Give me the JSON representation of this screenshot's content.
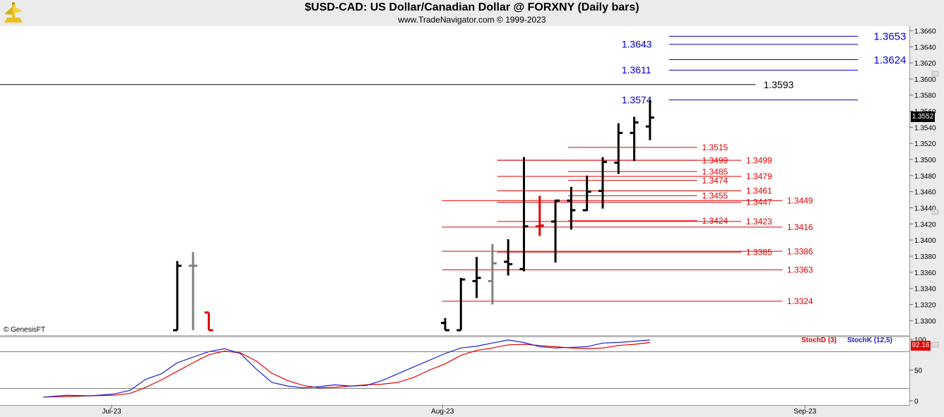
{
  "header": {
    "title": "$USD-CAD:  US Dollar/Canadian Dollar @ FORXNY  (Daily bars)",
    "subtitle": "www.TradeNavigator.com © 1999-2023"
  },
  "watermark": "© GenesisFT",
  "colors": {
    "background": "#ffffff",
    "frame": "#ebebeb",
    "bar_up": "#000000",
    "bar_neutral": "#808080",
    "bar_down": "#e00000",
    "level_red": "#e00000",
    "level_blue": "#0000cc",
    "level_black": "#000000",
    "stoch_d": "#e00000",
    "stoch_k": "#2020d0"
  },
  "chart_data": {
    "type": "ohlc",
    "title": "$USD-CAD:  US Dollar/Canadian Dollar @ FORXNY  (Daily bars)",
    "ylim": [
      1.3288,
      1.3663
    ],
    "y_ticks": [
      1.33,
      1.332,
      1.334,
      1.336,
      1.338,
      1.34,
      1.342,
      1.344,
      1.346,
      1.348,
      1.35,
      1.352,
      1.354,
      1.356,
      1.358,
      1.36,
      1.362,
      1.364,
      1.366
    ],
    "y_tick_labels": [
      "1.3300",
      "1.3320",
      "1.3340",
      "1.3360",
      "1.3380",
      "1.3400",
      "1.3420",
      "1.3440",
      "1.3460",
      "1.3480",
      "1.3500",
      "1.3520",
      "1.3540",
      "1.3560",
      "1.3580",
      "1.3600",
      "1.3620",
      "1.3640",
      "1.3660"
    ],
    "x_labels": [
      {
        "label": "Jul-23",
        "index": 0
      },
      {
        "label": "Aug-23",
        "index": 21
      },
      {
        "label": "Sep-23",
        "index": 44
      }
    ],
    "last_price": "1.3552",
    "bars": [
      {
        "i": 3,
        "open": 1.3288,
        "high": 1.3374,
        "low": 1.3288,
        "close": 1.3368,
        "color": "black"
      },
      {
        "i": 4,
        "open": 1.3368,
        "high": 1.3385,
        "low": 1.3288,
        "close": 1.3368,
        "color": "gray"
      },
      {
        "i": 5,
        "open": 1.331,
        "high": 1.331,
        "low": 1.3288,
        "close": 1.3288,
        "color": "red"
      },
      {
        "i": 20,
        "open": 1.3297,
        "high": 1.3303,
        "low": 1.3288,
        "close": 1.3288,
        "color": "black"
      },
      {
        "i": 21,
        "open": 1.3288,
        "high": 1.3353,
        "low": 1.3288,
        "close": 1.3351,
        "color": "black"
      },
      {
        "i": 22,
        "open": 1.3349,
        "high": 1.3379,
        "low": 1.3328,
        "close": 1.3353,
        "color": "black"
      },
      {
        "i": 23,
        "open": 1.3349,
        "high": 1.3395,
        "low": 1.332,
        "close": 1.3371,
        "color": "gray"
      },
      {
        "i": 24,
        "open": 1.3373,
        "high": 1.3401,
        "low": 1.3356,
        "close": 1.337,
        "color": "black"
      },
      {
        "i": 25,
        "open": 1.3364,
        "high": 1.3503,
        "low": 1.3361,
        "close": 1.3417,
        "color": "black"
      },
      {
        "i": 26,
        "open": 1.3417,
        "high": 1.3455,
        "low": 1.3405,
        "close": 1.3418,
        "color": "red"
      },
      {
        "i": 27,
        "open": 1.3423,
        "high": 1.345,
        "low": 1.3372,
        "close": 1.3449,
        "color": "black"
      },
      {
        "i": 28,
        "open": 1.3449,
        "high": 1.3466,
        "low": 1.3413,
        "close": 1.3437,
        "color": "black"
      },
      {
        "i": 29,
        "open": 1.3437,
        "high": 1.348,
        "low": 1.3436,
        "close": 1.346,
        "color": "black"
      },
      {
        "i": 30,
        "open": 1.3461,
        "high": 1.3503,
        "low": 1.3439,
        "close": 1.3497,
        "color": "black"
      },
      {
        "i": 31,
        "open": 1.3496,
        "high": 1.3545,
        "low": 1.3482,
        "close": 1.3533,
        "color": "black"
      },
      {
        "i": 32,
        "open": 1.3533,
        "high": 1.3553,
        "low": 1.3498,
        "close": 1.3546,
        "color": "black"
      },
      {
        "i": 33,
        "open": 1.3541,
        "high": 1.3574,
        "low": 1.3524,
        "close": 1.3552,
        "color": "black"
      }
    ],
    "levels": [
      {
        "value": 1.3653,
        "label": "1.3653",
        "color": "blue",
        "from": 34.2,
        "to": 46.2,
        "label_at": 47.2,
        "large": true
      },
      {
        "value": 1.3643,
        "label": "1.3643",
        "color": "blue",
        "from": 34.2,
        "to": 46.2,
        "label_at": 31.2,
        "large": false
      },
      {
        "value": 1.3624,
        "label": "1.3624",
        "color": "blue",
        "from": 34.2,
        "to": 46.2,
        "label_at": 47.2,
        "large": true
      },
      {
        "value": 1.3611,
        "label": "1.3611",
        "color": "blue",
        "from": 34.2,
        "to": 46.2,
        "label_at": 31.2,
        "large": false
      },
      {
        "value": 1.3593,
        "label": "1.3593",
        "color": "black",
        "from": -99,
        "to": 39.7,
        "label_at": 40.2,
        "large": false
      },
      {
        "value": 1.3574,
        "label": "1.3574",
        "color": "blue",
        "from": 34.2,
        "to": 46.2,
        "label_at": 31.2,
        "large": false
      },
      {
        "value": 1.3515,
        "label": "1.3515",
        "color": "red",
        "from": 27.8,
        "to": 36.0,
        "label_at": 36.3,
        "large": false
      },
      {
        "value": 1.3499,
        "label": "1.3499",
        "color": "red",
        "from": 23.3,
        "to": 36.0,
        "label_at": 36.3,
        "large": false
      },
      {
        "value": 1.3499,
        "label": "1.3499",
        "color": "red",
        "from": 23.3,
        "to": 38.8,
        "label_at": 39.1,
        "large": false
      },
      {
        "value": 1.3485,
        "label": "1.3485",
        "color": "red",
        "from": 27.8,
        "to": 36.0,
        "label_at": 36.3,
        "large": false
      },
      {
        "value": 1.3479,
        "label": "1.3479",
        "color": "red",
        "from": 23.3,
        "to": 38.8,
        "label_at": 39.1,
        "large": false
      },
      {
        "value": 1.3474,
        "label": "1.3474",
        "color": "red",
        "from": 27.8,
        "to": 36.0,
        "label_at": 36.3,
        "large": false
      },
      {
        "value": 1.3461,
        "label": "1.3461",
        "color": "red",
        "from": 23.3,
        "to": 38.8,
        "label_at": 39.1,
        "large": false
      },
      {
        "value": 1.3455,
        "label": "1.3455",
        "color": "red",
        "from": 27.8,
        "to": 36.0,
        "label_at": 36.3,
        "large": false
      },
      {
        "value": 1.3449,
        "label": "1.3449",
        "color": "red",
        "from": 19.8,
        "to": 41.4,
        "label_at": 41.7,
        "large": false
      },
      {
        "value": 1.3447,
        "label": "1.3447",
        "color": "red",
        "from": 23.3,
        "to": 38.8,
        "label_at": 39.1,
        "large": false
      },
      {
        "value": 1.3424,
        "label": "1.3424",
        "color": "red",
        "from": 27.8,
        "to": 36.0,
        "label_at": 36.3,
        "large": false
      },
      {
        "value": 1.3423,
        "label": "1.3423",
        "color": "red",
        "from": 23.3,
        "to": 38.8,
        "label_at": 39.1,
        "large": false
      },
      {
        "value": 1.3416,
        "label": "1.3416",
        "color": "red",
        "from": 19.8,
        "to": 41.4,
        "label_at": 41.7,
        "large": false
      },
      {
        "value": 1.3386,
        "label": "1.3386",
        "color": "red",
        "from": 19.8,
        "to": 41.4,
        "label_at": 41.7,
        "large": false
      },
      {
        "value": 1.3385,
        "label": "1.3385",
        "color": "red",
        "from": 23.3,
        "to": 38.8,
        "label_at": 39.1,
        "large": false
      },
      {
        "value": 1.3363,
        "label": "1.3363",
        "color": "red",
        "from": 19.8,
        "to": 41.4,
        "label_at": 41.7,
        "large": false
      },
      {
        "value": 1.3324,
        "label": "1.3324",
        "color": "red",
        "from": 19.8,
        "to": 41.4,
        "label_at": 41.7,
        "large": false
      }
    ],
    "oscillator": {
      "ylim": [
        0,
        100
      ],
      "ticks": [
        0,
        50,
        100
      ],
      "tick_labels": [
        "0",
        "50",
        "100"
      ],
      "reference_lines": [
        20,
        80
      ],
      "last_value": "92.16",
      "series": [
        {
          "name": "StochD (3)",
          "color": "red",
          "values": [
            [
              -5.5,
              6
            ],
            [
              -4,
              7
            ],
            [
              -2.5,
              8
            ],
            [
              -1,
              9
            ],
            [
              0,
              12
            ],
            [
              1,
              22
            ],
            [
              2,
              34
            ],
            [
              3,
              48
            ],
            [
              4,
              62
            ],
            [
              5,
              75
            ],
            [
              6,
              81
            ],
            [
              7,
              78
            ],
            [
              8,
              65
            ],
            [
              9,
              45
            ],
            [
              10,
              33
            ],
            [
              11,
              25
            ],
            [
              12,
              21
            ],
            [
              13,
              22
            ],
            [
              14,
              24
            ],
            [
              15,
              26
            ],
            [
              16,
              27
            ],
            [
              17,
              30
            ],
            [
              18,
              38
            ],
            [
              19,
              50
            ],
            [
              20,
              60
            ],
            [
              21,
              74
            ],
            [
              22,
              82
            ],
            [
              23,
              86
            ],
            [
              24,
              91
            ],
            [
              25,
              92
            ],
            [
              26,
              90
            ],
            [
              27,
              88
            ],
            [
              28,
              86
            ],
            [
              29,
              85
            ],
            [
              30,
              86
            ],
            [
              31,
              90
            ],
            [
              32,
              92
            ],
            [
              33,
              95
            ]
          ]
        },
        {
          "name": "StochK (12,5)",
          "color": "blue",
          "values": [
            [
              -5.5,
              6
            ],
            [
              -4,
              9
            ],
            [
              -2.5,
              8
            ],
            [
              -1,
              11
            ],
            [
              0,
              17
            ],
            [
              1,
              35
            ],
            [
              2,
              44
            ],
            [
              3,
              62
            ],
            [
              4,
              71
            ],
            [
              5,
              80
            ],
            [
              6,
              85
            ],
            [
              7,
              77
            ],
            [
              8,
              52
            ],
            [
              9,
              30
            ],
            [
              10,
              24
            ],
            [
              11,
              21
            ],
            [
              12,
              23
            ],
            [
              13,
              26
            ],
            [
              14,
              24
            ],
            [
              15,
              25
            ],
            [
              16,
              33
            ],
            [
              17,
              44
            ],
            [
              18,
              55
            ],
            [
              19,
              66
            ],
            [
              20,
              77
            ],
            [
              21,
              86
            ],
            [
              22,
              89
            ],
            [
              23,
              94
            ],
            [
              24,
              99
            ],
            [
              25,
              95
            ],
            [
              26,
              88
            ],
            [
              27,
              86
            ],
            [
              28,
              87
            ],
            [
              29,
              88
            ],
            [
              30,
              94
            ],
            [
              31,
              95
            ],
            [
              32,
              97
            ],
            [
              33,
              99
            ]
          ]
        }
      ]
    }
  }
}
